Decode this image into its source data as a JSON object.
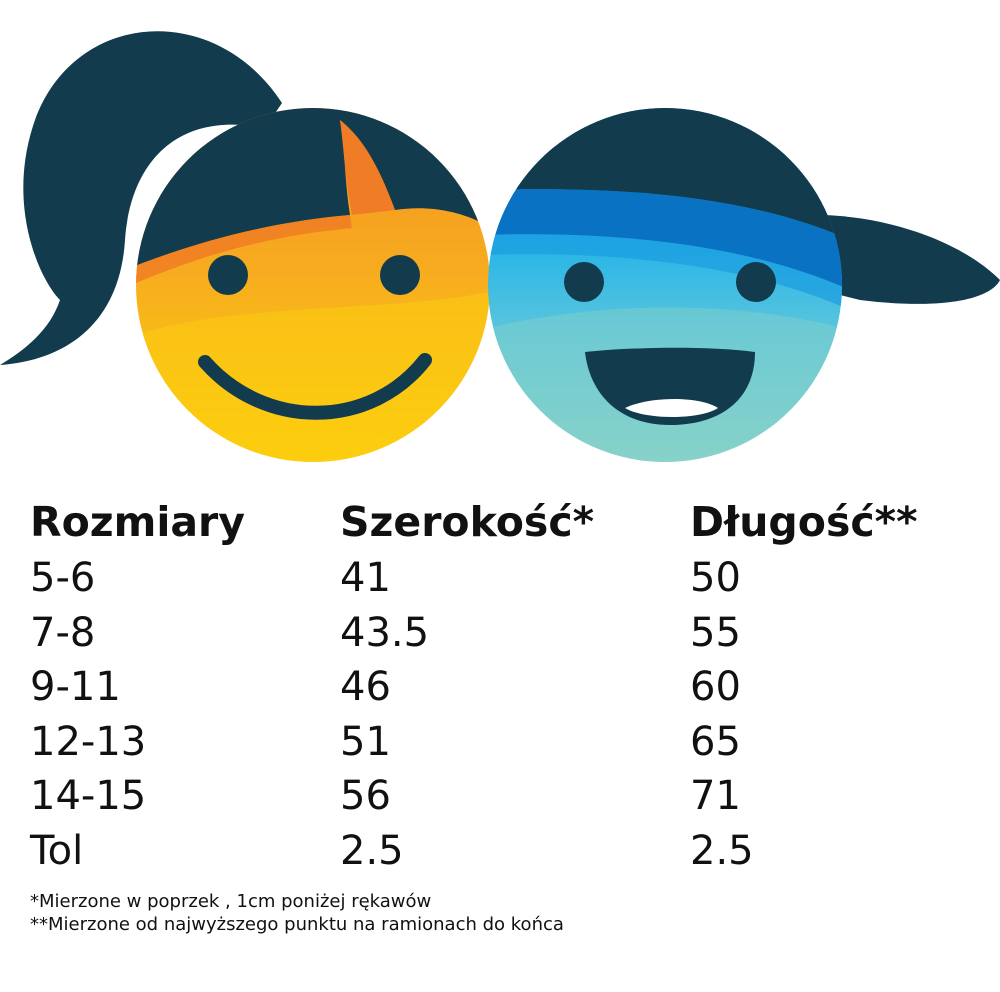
{
  "table": {
    "headers": [
      "Rozmiary",
      "Szerokość*",
      "Długość**"
    ],
    "rows": [
      [
        "5-6",
        "41",
        "50"
      ],
      [
        "7-8",
        "43.5",
        "55"
      ],
      [
        "9-11",
        "46",
        "60"
      ],
      [
        "12-13",
        "51",
        "65"
      ],
      [
        "14-15",
        "56",
        "71"
      ],
      [
        "Tol",
        "2.5",
        "2.5"
      ]
    ]
  },
  "footnotes": [
    "*Mierzone w poprzek  , 1cm poniżej rękawów",
    "**Mierzone od najwyższego punktu na ramionach do końca"
  ],
  "colors": {
    "hair": "#123b4d",
    "girl_face_top": "#f7a81f",
    "girl_face_bottom": "#fdd20a",
    "girl_fringe": "#f07c25",
    "boy_face_top": "#1aa4e4",
    "boy_face_bottom": "#88d3c6",
    "boy_band": "#0a72c2"
  },
  "icons": [
    "girl-face-icon",
    "boy-face-icon"
  ]
}
